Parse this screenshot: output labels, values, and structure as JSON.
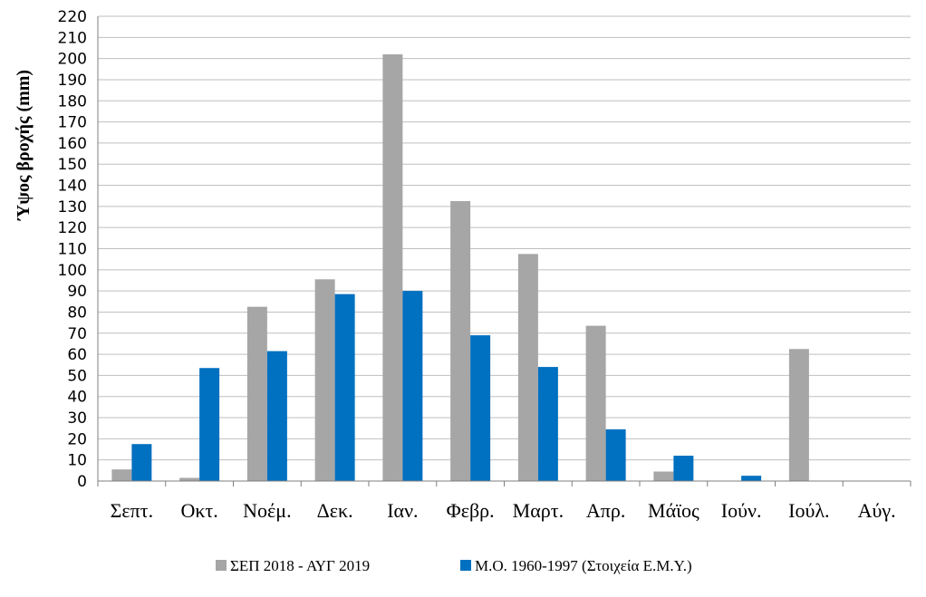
{
  "chart_data": {
    "type": "bar",
    "title": "",
    "xlabel": "",
    "ylabel": "Ύψος βροχής (mm)",
    "ylim": [
      0,
      220
    ],
    "ytick_step": 10,
    "grid": true,
    "legend_position": "bottom",
    "categories": [
      "Σεπτ.",
      "Οκτ.",
      "Νοέμ.",
      "Δεκ.",
      "Ιαν.",
      "Φεβρ.",
      "Μαρτ.",
      "Απρ.",
      "Μάϊος",
      "Ιούν.",
      "Ιούλ.",
      "Αύγ."
    ],
    "series": [
      {
        "name": "ΣΕΠ 2018 - ΑΥΓ 2019",
        "color": "#a6a6a6",
        "values": [
          5.5,
          1.5,
          82.5,
          95.5,
          202,
          132.5,
          107.5,
          73.5,
          4.5,
          0,
          62.5,
          0
        ]
      },
      {
        "name": "Μ.Ο. 1960-1997  (Στοιχεία Ε.Μ.Υ.)",
        "color": "#0070c0",
        "values": [
          17.5,
          53.5,
          61.5,
          88.5,
          90,
          69,
          54,
          24.5,
          12,
          2.5,
          0,
          0
        ]
      }
    ]
  }
}
